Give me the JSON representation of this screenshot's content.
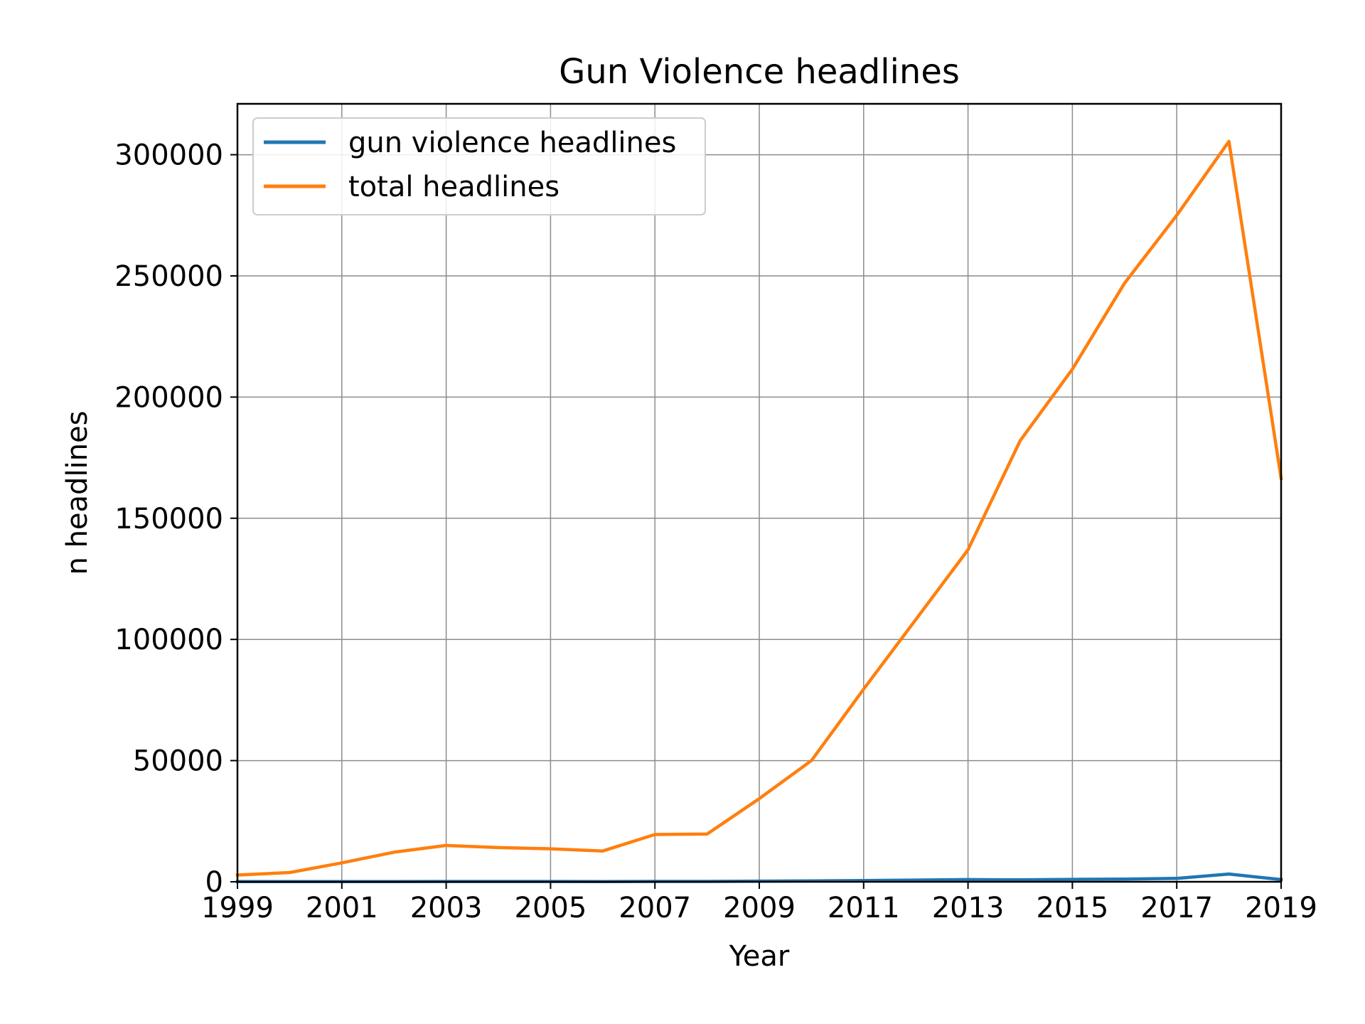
{
  "chart_data": {
    "type": "line",
    "title": "Gun Violence headlines",
    "xlabel": "Year",
    "ylabel": "n headlines",
    "xlim": [
      1999,
      2019
    ],
    "ylim": [
      0,
      321000
    ],
    "x_ticks": [
      1999,
      2001,
      2003,
      2005,
      2007,
      2009,
      2011,
      2013,
      2015,
      2017,
      2019
    ],
    "y_ticks": [
      0,
      50000,
      100000,
      150000,
      200000,
      250000,
      300000
    ],
    "grid": true,
    "legend_position": "top-left",
    "x": [
      1999,
      2000,
      2001,
      2002,
      2003,
      2004,
      2005,
      2006,
      2007,
      2008,
      2009,
      2010,
      2011,
      2012,
      2013,
      2014,
      2015,
      2016,
      2017,
      2018,
      2019
    ],
    "series": [
      {
        "name": "gun violence headlines",
        "color": "#1f77b4",
        "values": [
          50,
          60,
          80,
          100,
          120,
          110,
          110,
          100,
          150,
          150,
          250,
          350,
          500,
          700,
          900,
          800,
          1000,
          1100,
          1400,
          3200,
          900
        ]
      },
      {
        "name": "total headlines",
        "color": "#ff7f0e",
        "values": [
          2800,
          3800,
          7800,
          12200,
          15000,
          14100,
          13600,
          12700,
          19500,
          19700,
          34300,
          50000,
          79500,
          108200,
          137000,
          182000,
          211500,
          247000,
          275000,
          305500,
          166500
        ]
      }
    ]
  }
}
